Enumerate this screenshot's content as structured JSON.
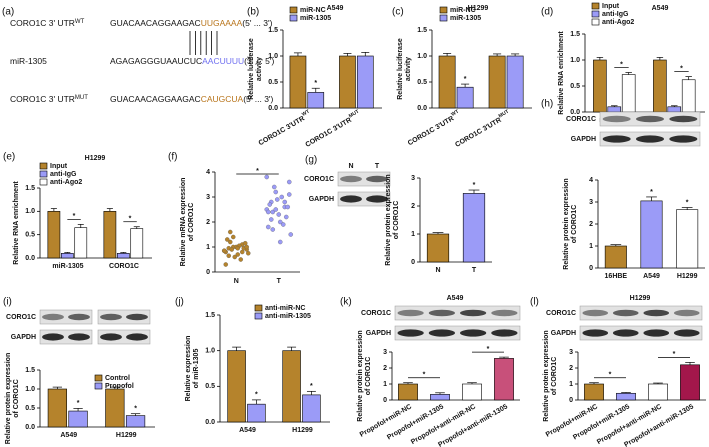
{
  "chart_data": [
    {
      "type": "sequence",
      "label": "(a)",
      "rows": [
        {
          "name": "CORO1C 3' UTR",
          "sup": "WT",
          "seq": "GUACAACAGGAAGAC",
          "site": "UUGAAAA",
          "end": "(5' ... 3')"
        },
        {
          "name": "miR-1305",
          "seq": "AGAGAGGGUAAUCUC",
          "site": "AACUUUU",
          "end": "(3' ... 5')"
        },
        {
          "name": "CORO1C 3' UTR",
          "sup": "MUT",
          "seq": "GUACAACAGGAAGAC",
          "site": "CAUGCUA",
          "end": "(5' ... 3')"
        }
      ]
    },
    {
      "type": "bar",
      "label": "(b)",
      "title": "A549",
      "ylabel": [
        "Relative luciferase",
        "activity"
      ],
      "categories": [
        "CORO1C 3'UTR",
        "CORO1C 3'UTR"
      ],
      "category_superscripts": [
        "WT",
        "MUT"
      ],
      "series": [
        {
          "name": "miR-NC",
          "color": "#b5832c",
          "values": [
            1.0,
            1.0
          ],
          "errors": [
            0.06,
            0.05
          ]
        },
        {
          "name": "miR-1305",
          "color": "#9b9bf7",
          "values": [
            0.3,
            1.0
          ],
          "errors": [
            0.08,
            0.07
          ],
          "significance": [
            "*",
            null
          ]
        }
      ],
      "ylim": [
        0,
        1.5
      ],
      "yticks": [
        {
          "value": 0,
          "label": "0.0"
        },
        {
          "value": 0.5,
          "label": "0.5"
        },
        {
          "value": 1,
          "label": "1.0"
        },
        {
          "value": 1.5,
          "label": "1.5"
        }
      ]
    },
    {
      "type": "bar",
      "label": "(c)",
      "title": "H1299",
      "ylabel": [
        "Relative luciferase",
        "activity"
      ],
      "categories": [
        "CORO1C 3'UTR",
        "CORO1C 3'UTR"
      ],
      "category_superscripts": [
        "WT",
        "MUT"
      ],
      "series": [
        {
          "name": "miR-NC",
          "color": "#b5832c",
          "values": [
            1.0,
            1.0
          ],
          "errors": [
            0.05,
            0.04
          ]
        },
        {
          "name": "miR-1305",
          "color": "#9b9bf7",
          "values": [
            0.4,
            1.0
          ],
          "errors": [
            0.06,
            0.04
          ],
          "significance": [
            "*",
            null
          ]
        }
      ],
      "ylim": [
        0,
        1.5
      ],
      "yticks": [
        {
          "value": 0,
          "label": "0.0"
        },
        {
          "value": 0.5,
          "label": "0.5"
        },
        {
          "value": 1,
          "label": "1.0"
        },
        {
          "value": 1.5,
          "label": "1.5"
        }
      ]
    },
    {
      "type": "bar",
      "label": "(d)",
      "title": "A549",
      "ylabel": [
        "Relative RNA enrichment"
      ],
      "categories": [
        "miR-1305",
        "CORO1C"
      ],
      "bracket": true,
      "series": [
        {
          "name": "Input",
          "color": "#b5832c",
          "values": [
            1.0,
            1.0
          ],
          "errors": [
            0.05,
            0.05
          ]
        },
        {
          "name": "anti-IgG",
          "color": "#9b9bf7",
          "values": [
            0.1,
            0.1
          ],
          "errors": [
            0.02,
            0.02
          ]
        },
        {
          "name": "anti-Ago2",
          "color": "#ffffff",
          "values": [
            0.72,
            0.62
          ],
          "errors": [
            0.04,
            0.06
          ],
          "significance": [
            "*",
            "*"
          ]
        }
      ],
      "ylim": [
        0,
        1.5
      ],
      "yticks": [
        {
          "value": 0,
          "label": "0.0"
        },
        {
          "value": 0.5,
          "label": "0.5"
        },
        {
          "value": 1,
          "label": "1.0"
        },
        {
          "value": 1.5,
          "label": "1.5"
        }
      ]
    },
    {
      "type": "bar",
      "label": "(e)",
      "title": "H1299",
      "ylabel": [
        "Relative RNA enrichment"
      ],
      "categories": [
        "miR-1305",
        "CORO1C"
      ],
      "bracket": true,
      "series": [
        {
          "name": "Input",
          "color": "#b5832c",
          "values": [
            1.0,
            1.0
          ],
          "errors": [
            0.06,
            0.06
          ]
        },
        {
          "name": "anti-IgG",
          "color": "#9b9bf7",
          "values": [
            0.1,
            0.1
          ],
          "errors": [
            0.02,
            0.02
          ]
        },
        {
          "name": "anti-Ago2",
          "color": "#ffffff",
          "values": [
            0.65,
            0.63
          ],
          "errors": [
            0.07,
            0.04
          ],
          "significance": [
            "*",
            "*"
          ]
        }
      ],
      "ylim": [
        0,
        1.5
      ],
      "yticks": [
        {
          "value": 0,
          "label": "0.0"
        },
        {
          "value": 0.5,
          "label": "0.5"
        },
        {
          "value": 1,
          "label": "1.0"
        },
        {
          "value": 1.5,
          "label": "1.5"
        }
      ]
    },
    {
      "type": "scatter",
      "label": "(f)",
      "ylabel": [
        "Relative mRNA expression",
        "of CORO1C"
      ],
      "categories": [
        "N",
        "T"
      ],
      "colors": [
        "#b5832c",
        "#9b9bf7"
      ],
      "significance": "*",
      "values": [
        [
          0.85,
          0.95,
          1.0,
          0.7,
          1.1,
          0.9,
          0.8,
          1.2,
          0.6,
          1.05,
          0.95,
          0.75,
          1.3,
          0.9,
          1.0,
          0.5,
          1.15,
          0.85,
          0.65,
          1.4,
          0.95,
          0.8,
          1.0,
          0.3,
          1.6
        ],
        [
          2.5,
          2.8,
          3.2,
          2.0,
          2.6,
          3.6,
          1.8,
          2.4,
          2.9,
          3.0,
          2.2,
          1.5,
          2.7,
          3.4,
          2.3,
          1.9,
          2.6,
          3.8,
          2.1,
          2.5,
          1.2,
          2.8,
          3.1,
          2.4,
          1.7
        ]
      ],
      "ylim": [
        0,
        4
      ],
      "yticks": [
        0,
        1,
        2,
        3,
        4
      ]
    },
    {
      "type": "bar",
      "label": "(g)",
      "ylabel": [
        "Relative protein expression",
        "of CORO1C"
      ],
      "blot": {
        "header": [
          "N",
          "T"
        ],
        "rows": [
          "CORO1C",
          "GAPDH"
        ]
      },
      "categories": [
        "N",
        "T"
      ],
      "values": [
        1.0,
        2.45
      ],
      "errors": [
        0.05,
        0.12
      ],
      "colors": [
        "#b5832c",
        "#9b9bf7"
      ],
      "significance": [
        null,
        "*"
      ],
      "ylim": [
        0,
        3
      ],
      "yticks": [
        0,
        1,
        2,
        3
      ]
    },
    {
      "type": "bar",
      "label": "(h)",
      "ylabel": [
        "Relative protein expression",
        "of CORO1C"
      ],
      "blot": {
        "rows": [
          "CORO1C",
          "GAPDH"
        ]
      },
      "categories": [
        "16HBE",
        "A549",
        "H1299"
      ],
      "values": [
        1.0,
        3.05,
        2.65
      ],
      "errors": [
        0.06,
        0.18,
        0.1
      ],
      "colors": [
        "#b5832c",
        "#9b9bf7",
        "#ffffff"
      ],
      "significance": [
        null,
        "*",
        "*"
      ],
      "ylim": [
        0,
        4
      ],
      "yticks": [
        0,
        1,
        2,
        3,
        4
      ]
    },
    {
      "type": "bar",
      "label": "(i)",
      "ylabel": [
        "Relative protein expression",
        "of CORO1C"
      ],
      "blot": {
        "rows": [
          "CORO1C",
          "GAPDH"
        ]
      },
      "categories": [
        "A549",
        "H1299"
      ],
      "series": [
        {
          "name": "Control",
          "color": "#b5832c",
          "values": [
            1.0,
            1.0
          ],
          "errors": [
            0.05,
            0.05
          ]
        },
        {
          "name": "Propofol",
          "color": "#9b9bf7",
          "values": [
            0.42,
            0.3
          ],
          "errors": [
            0.07,
            0.05
          ],
          "significance": [
            "*",
            "*"
          ]
        }
      ],
      "ylim": [
        0,
        1.5
      ],
      "yticks": [
        {
          "value": 0,
          "label": "0.0"
        },
        {
          "value": 0.5,
          "label": "0.5"
        },
        {
          "value": 1,
          "label": "1.0"
        },
        {
          "value": 1.5,
          "label": "1.5"
        }
      ]
    },
    {
      "type": "bar",
      "label": "(j)",
      "ylabel": [
        "Relative expression",
        "of miR-1305"
      ],
      "categories": [
        "A549",
        "H1299"
      ],
      "series": [
        {
          "name": "anti-miR-NC",
          "color": "#b5832c",
          "values": [
            1.0,
            1.0
          ],
          "errors": [
            0.05,
            0.05
          ]
        },
        {
          "name": "anti-miR-1305",
          "color": "#9b9bf7",
          "values": [
            0.25,
            0.38
          ],
          "errors": [
            0.06,
            0.05
          ],
          "significance": [
            "*",
            "*"
          ]
        }
      ],
      "ylim": [
        0,
        1.5
      ],
      "yticks": [
        {
          "value": 0,
          "label": "0.0"
        },
        {
          "value": 0.5,
          "label": "0.5"
        },
        {
          "value": 1,
          "label": "1.0"
        },
        {
          "value": 1.5,
          "label": "1.5"
        }
      ]
    },
    {
      "type": "bar",
      "label": "(k)",
      "title": "A549",
      "ylabel": [
        "Relative protein expression",
        "of CORO1C"
      ],
      "blot": {
        "rows": [
          "CORO1C",
          "GAPDH"
        ]
      },
      "bracket": true,
      "categories": [
        "Propofol+miR-NC",
        "Propofol+miR-1305",
        "Propofol+anti-miR-NC",
        "Propofol+anti-miR-1305"
      ],
      "values": [
        1.0,
        0.35,
        1.0,
        2.6
      ],
      "errors": [
        0.08,
        0.1,
        0.08,
        0.08
      ],
      "colors": [
        "#b5832c",
        "#9b9bf7",
        "#ffffff",
        "#c8507a"
      ],
      "significance": [
        null,
        "*",
        null,
        "*"
      ],
      "ylim": [
        0,
        3
      ],
      "yticks": [
        0,
        1,
        2,
        3
      ]
    },
    {
      "type": "bar",
      "label": "(l)",
      "title": "H1299",
      "ylabel": [
        "Relative protein expression",
        "of CORO1C"
      ],
      "blot": {
        "rows": [
          "CORO1C",
          "GAPDH"
        ]
      },
      "bracket": true,
      "categories": [
        "Propofol+miR-NC",
        "Propofol+miR-1305",
        "Propofol+anti-miR-NC",
        "Propofol+anti-miR-1305"
      ],
      "values": [
        1.0,
        0.42,
        1.0,
        2.2
      ],
      "errors": [
        0.08,
        0.05,
        0.06,
        0.15
      ],
      "colors": [
        "#b5832c",
        "#9b9bf7",
        "#ffffff",
        "#a3174b"
      ],
      "significance": [
        null,
        "*",
        null,
        "*"
      ],
      "ylim": [
        0,
        3
      ],
      "yticks": [
        0,
        1,
        2,
        3
      ]
    }
  ]
}
